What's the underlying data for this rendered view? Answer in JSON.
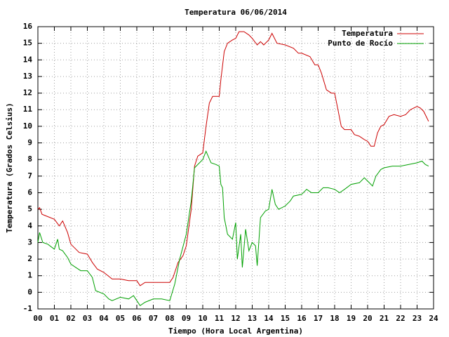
{
  "chart_data": {
    "type": "line",
    "title": "Temperatura 06/06/2014",
    "x_label": "Tiempo (Hora Local Argentina)",
    "y_label": "Temperatura (Grados Celsius)",
    "xlim": [
      0,
      24
    ],
    "ylim": [
      -1,
      16
    ],
    "xticks": [
      {
        "value": 0,
        "label": "00"
      },
      {
        "value": 1,
        "label": "01"
      },
      {
        "value": 2,
        "label": "02"
      },
      {
        "value": 3,
        "label": "03"
      },
      {
        "value": 4,
        "label": "04"
      },
      {
        "value": 5,
        "label": "05"
      },
      {
        "value": 6,
        "label": "06"
      },
      {
        "value": 7,
        "label": "07"
      },
      {
        "value": 8,
        "label": "08"
      },
      {
        "value": 9,
        "label": "09"
      },
      10,
      11,
      12,
      13,
      14,
      15,
      16,
      17,
      18,
      19,
      20,
      21,
      22,
      23,
      24
    ],
    "yticks": [
      -1,
      0,
      1,
      2,
      3,
      4,
      5,
      6,
      7,
      8,
      9,
      10,
      11,
      12,
      13,
      14,
      15,
      16
    ],
    "grid": true,
    "legend": "top-right",
    "series": [
      {
        "name": "Temperatura",
        "color": "#cc0000",
        "x": [
          0.0,
          0.1,
          0.25,
          0.5,
          1.0,
          1.3,
          1.5,
          1.8,
          2.0,
          2.5,
          3.0,
          3.3,
          3.6,
          4.0,
          4.5,
          5.0,
          5.5,
          6.0,
          6.2,
          6.5,
          7.0,
          7.5,
          8.0,
          8.2,
          8.5,
          8.8,
          9.0,
          9.3,
          9.5,
          9.7,
          10.0,
          10.2,
          10.4,
          10.6,
          11.0,
          11.1,
          11.3,
          11.5,
          11.8,
          12.0,
          12.2,
          12.5,
          12.8,
          13.0,
          13.3,
          13.5,
          13.7,
          14.0,
          14.2,
          14.5,
          15.0,
          15.5,
          15.8,
          16.0,
          16.5,
          16.8,
          17.0,
          17.2,
          17.5,
          17.8,
          18.0,
          18.2,
          18.4,
          18.6,
          19.0,
          19.2,
          19.5,
          19.8,
          20.0,
          20.2,
          20.4,
          20.6,
          20.8,
          21.0,
          21.3,
          21.6,
          22.0,
          22.3,
          22.6,
          23.0,
          23.2,
          23.4,
          23.6,
          23.7
        ],
        "values": [
          5.0,
          5.1,
          4.7,
          4.6,
          4.4,
          4.0,
          4.3,
          3.6,
          2.9,
          2.4,
          2.3,
          1.8,
          1.4,
          1.2,
          0.8,
          0.8,
          0.7,
          0.7,
          0.4,
          0.6,
          0.6,
          0.6,
          0.6,
          0.9,
          1.8,
          2.2,
          2.8,
          5.0,
          7.6,
          8.2,
          8.4,
          10.0,
          11.4,
          11.8,
          11.8,
          12.8,
          14.5,
          15.0,
          15.2,
          15.3,
          15.7,
          15.7,
          15.5,
          15.3,
          14.9,
          15.1,
          14.9,
          15.2,
          15.6,
          15.0,
          14.9,
          14.7,
          14.4,
          14.4,
          14.2,
          13.7,
          13.7,
          13.2,
          12.2,
          12.0,
          12.0,
          11.0,
          10.0,
          9.8,
          9.8,
          9.5,
          9.4,
          9.2,
          9.1,
          8.8,
          8.8,
          9.6,
          10.0,
          10.1,
          10.6,
          10.7,
          10.6,
          10.7,
          11.0,
          11.2,
          11.1,
          10.9,
          10.5,
          10.3
        ]
      },
      {
        "name": "Punto de Rocío",
        "color": "#00a000",
        "x": [
          0.0,
          0.1,
          0.3,
          0.6,
          1.0,
          1.2,
          1.3,
          1.5,
          1.8,
          2.0,
          2.3,
          2.6,
          3.0,
          3.3,
          3.5,
          4.0,
          4.3,
          4.5,
          5.0,
          5.5,
          5.8,
          6.0,
          6.2,
          6.5,
          7.0,
          7.5,
          8.0,
          8.3,
          8.6,
          9.0,
          9.3,
          9.5,
          10.0,
          10.2,
          10.5,
          10.8,
          11.0,
          11.1,
          11.2,
          11.3,
          11.5,
          11.8,
          12.0,
          12.1,
          12.3,
          12.4,
          12.6,
          12.8,
          13.0,
          13.2,
          13.3,
          13.5,
          13.8,
          14.0,
          14.2,
          14.4,
          14.6,
          15.0,
          15.3,
          15.5,
          16.0,
          16.3,
          16.6,
          17.0,
          17.3,
          17.6,
          18.0,
          18.3,
          18.6,
          19.0,
          19.5,
          19.8,
          20.0,
          20.3,
          20.5,
          20.8,
          21.0,
          21.5,
          22.0,
          22.5,
          23.0,
          23.3,
          23.5,
          23.7
        ],
        "values": [
          3.0,
          3.6,
          3.0,
          2.9,
          2.6,
          3.2,
          2.6,
          2.5,
          2.1,
          1.7,
          1.5,
          1.3,
          1.3,
          0.9,
          0.1,
          -0.1,
          -0.4,
          -0.5,
          -0.3,
          -0.4,
          -0.2,
          -0.5,
          -0.8,
          -0.6,
          -0.4,
          -0.4,
          -0.5,
          0.5,
          2.0,
          3.5,
          5.5,
          7.5,
          8.0,
          8.5,
          7.8,
          7.7,
          7.6,
          6.5,
          6.3,
          4.5,
          3.5,
          3.2,
          4.2,
          2.0,
          3.5,
          1.5,
          3.8,
          2.5,
          3.0,
          2.8,
          1.6,
          4.5,
          4.9,
          5.0,
          6.2,
          5.3,
          5.0,
          5.2,
          5.5,
          5.8,
          5.9,
          6.2,
          6.0,
          6.0,
          6.3,
          6.3,
          6.2,
          6.0,
          6.2,
          6.5,
          6.6,
          6.9,
          6.7,
          6.4,
          7.0,
          7.4,
          7.5,
          7.6,
          7.6,
          7.7,
          7.8,
          7.9,
          7.7,
          7.6
        ]
      }
    ]
  }
}
